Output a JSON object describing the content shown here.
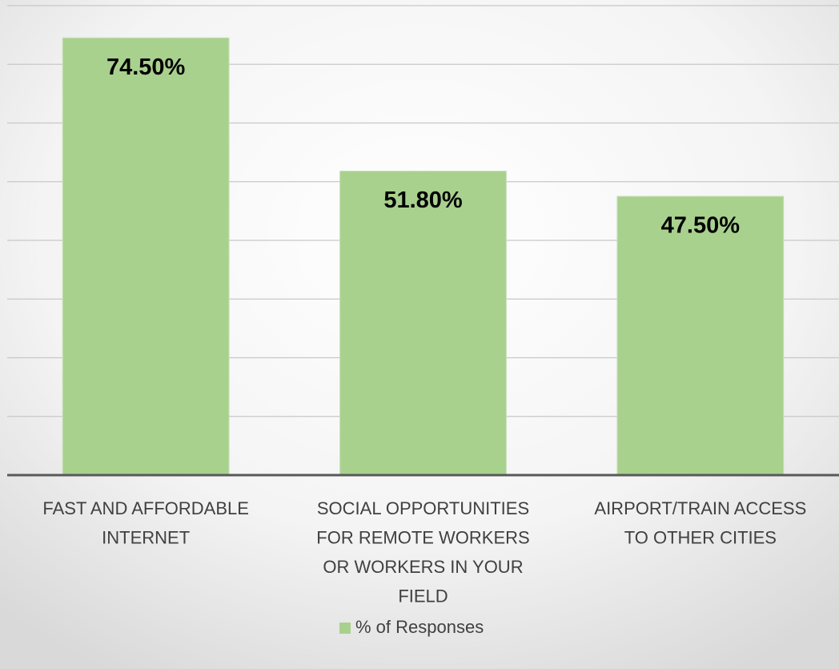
{
  "chart_data": {
    "type": "bar",
    "categories": [
      "FAST AND AFFORDABLE INTERNET",
      "SOCIAL OPPORTUNITIES FOR REMOTE WORKERS OR WORKERS IN YOUR FIELD",
      "AIRPORT/TRAIN ACCESS TO OTHER CITIES"
    ],
    "series": [
      {
        "name": "% of Responses",
        "color": "#a9d18e",
        "values": [
          74.5,
          51.8,
          47.5
        ],
        "value_labels": [
          "74.50%",
          "51.80%",
          "47.50%"
        ]
      }
    ],
    "ylim": [
      0,
      80
    ],
    "yticks": [
      0,
      10,
      20,
      30,
      40,
      50,
      60,
      70,
      80
    ],
    "grid": true,
    "legend": "bottom"
  }
}
